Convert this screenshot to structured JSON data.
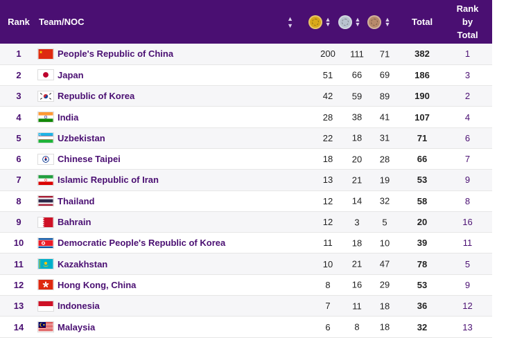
{
  "header": {
    "rank": "Rank",
    "team": "Team/NOC",
    "total": "Total",
    "rank_by_total": "Rank\nby\nTotal",
    "medals": [
      {
        "name": "gold",
        "color": "#d9a91a"
      },
      {
        "name": "silver",
        "color": "#b9c3cf"
      },
      {
        "name": "bronze",
        "color": "#b88a6b"
      }
    ]
  },
  "rows": [
    {
      "rank": "1",
      "team": "People's Republic of China",
      "flag": "china",
      "gold": "200",
      "silver": "111",
      "bronze": "71",
      "total": "382",
      "rbt": "1"
    },
    {
      "rank": "2",
      "team": "Japan",
      "flag": "japan",
      "gold": "51",
      "silver": "66",
      "bronze": "69",
      "total": "186",
      "rbt": "3"
    },
    {
      "rank": "3",
      "team": "Republic of Korea",
      "flag": "korea",
      "gold": "42",
      "silver": "59",
      "bronze": "89",
      "total": "190",
      "rbt": "2"
    },
    {
      "rank": "4",
      "team": "India",
      "flag": "india",
      "gold": "28",
      "silver": "38",
      "bronze": "41",
      "total": "107",
      "rbt": "4"
    },
    {
      "rank": "5",
      "team": "Uzbekistan",
      "flag": "uzbekistan",
      "gold": "22",
      "silver": "18",
      "bronze": "31",
      "total": "71",
      "rbt": "6"
    },
    {
      "rank": "6",
      "team": "Chinese Taipei",
      "flag": "chinese-taipei",
      "gold": "18",
      "silver": "20",
      "bronze": "28",
      "total": "66",
      "rbt": "7"
    },
    {
      "rank": "7",
      "team": "Islamic Republic of Iran",
      "flag": "iran",
      "gold": "13",
      "silver": "21",
      "bronze": "19",
      "total": "53",
      "rbt": "9"
    },
    {
      "rank": "8",
      "team": "Thailand",
      "flag": "thailand",
      "gold": "12",
      "silver": "14",
      "bronze": "32",
      "total": "58",
      "rbt": "8"
    },
    {
      "rank": "9",
      "team": "Bahrain",
      "flag": "bahrain",
      "gold": "12",
      "silver": "3",
      "bronze": "5",
      "total": "20",
      "rbt": "16"
    },
    {
      "rank": "10",
      "team": "Democratic People's Republic of Korea",
      "flag": "dprk",
      "gold": "11",
      "silver": "18",
      "bronze": "10",
      "total": "39",
      "rbt": "11"
    },
    {
      "rank": "11",
      "team": "Kazakhstan",
      "flag": "kazakhstan",
      "gold": "10",
      "silver": "21",
      "bronze": "47",
      "total": "78",
      "rbt": "5"
    },
    {
      "rank": "12",
      "team": "Hong Kong, China",
      "flag": "hong-kong",
      "gold": "8",
      "silver": "16",
      "bronze": "29",
      "total": "53",
      "rbt": "9"
    },
    {
      "rank": "13",
      "team": "Indonesia",
      "flag": "indonesia",
      "gold": "7",
      "silver": "11",
      "bronze": "18",
      "total": "36",
      "rbt": "12"
    },
    {
      "rank": "14",
      "team": "Malaysia",
      "flag": "malaysia",
      "gold": "6",
      "silver": "8",
      "bronze": "18",
      "total": "32",
      "rbt": "13"
    }
  ],
  "colors": {
    "header_bg": "#4a0f72",
    "accent": "#4a0f72"
  }
}
